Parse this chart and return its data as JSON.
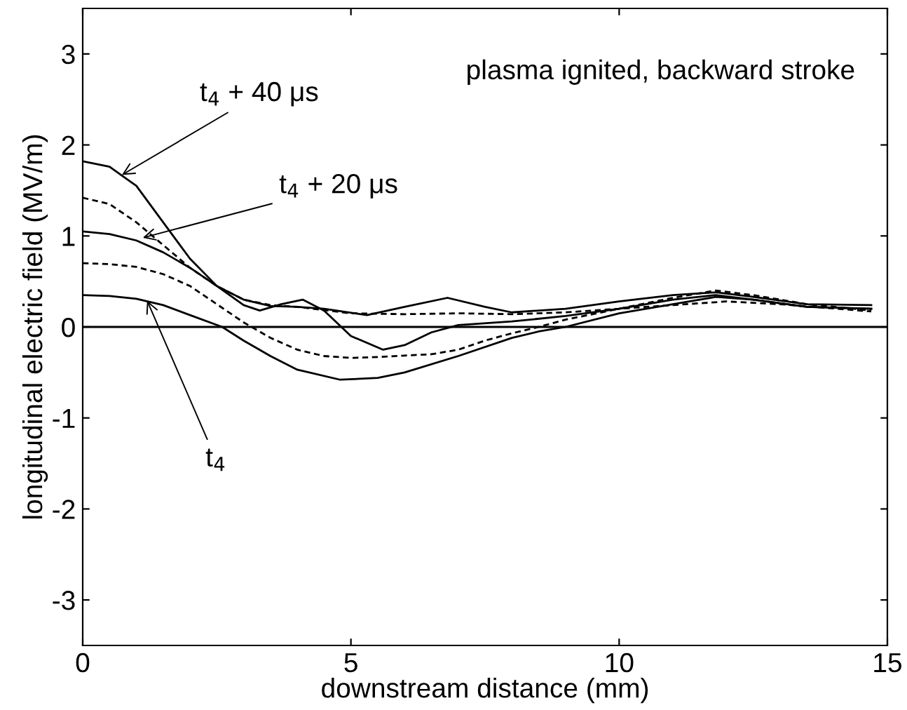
{
  "chart_data": {
    "type": "line",
    "xlabel": "downstream distance (mm)",
    "ylabel": "longitudinal electric field (MV/m)",
    "xlim": [
      0,
      15
    ],
    "ylim": [
      -3.5,
      3.5
    ],
    "xticks": [
      0,
      5,
      10,
      15
    ],
    "yticks": [
      -3,
      -2,
      -1,
      0,
      1,
      2,
      3
    ],
    "grid": false,
    "legend": false,
    "marker": "none",
    "series": [
      {
        "color": "#000000",
        "line_style": "solid",
        "x": [
          0,
          0.5,
          1,
          1.5,
          2,
          2.5,
          3,
          3.3,
          3.7,
          4.1,
          4.5,
          5,
          5.6,
          6,
          6.5,
          7,
          8,
          9,
          10,
          11,
          11.8,
          12.5,
          13.5,
          14.7
        ],
        "values": [
          1.82,
          1.76,
          1.55,
          1.15,
          0.75,
          0.45,
          0.24,
          0.18,
          0.25,
          0.3,
          0.18,
          -0.1,
          -0.25,
          -0.2,
          -0.06,
          0.02,
          0.06,
          0.12,
          0.2,
          0.3,
          0.35,
          0.3,
          0.22,
          0.2
        ]
      },
      {
        "color": "#000000",
        "line_style": "dashed",
        "x": [
          0,
          0.5,
          1,
          1.5,
          2,
          2.5,
          3,
          3.5,
          4,
          5,
          6,
          7,
          8,
          9,
          10,
          11,
          12,
          13,
          14.7
        ],
        "values": [
          1.42,
          1.35,
          1.15,
          0.9,
          0.65,
          0.45,
          0.3,
          0.24,
          0.22,
          0.15,
          0.14,
          0.15,
          0.14,
          0.16,
          0.2,
          0.24,
          0.28,
          0.25,
          0.17
        ]
      },
      {
        "color": "#000000",
        "line_style": "solid",
        "x": [
          0,
          0.5,
          1,
          1.5,
          2,
          2.5,
          3,
          3.5,
          4,
          4.5,
          5.3,
          6,
          6.8,
          7.5,
          8,
          9,
          10,
          11,
          11.8,
          12.5,
          13.5,
          14.7
        ],
        "values": [
          1.05,
          1.02,
          0.95,
          0.82,
          0.65,
          0.45,
          0.3,
          0.23,
          0.22,
          0.2,
          0.13,
          0.22,
          0.32,
          0.22,
          0.16,
          0.2,
          0.28,
          0.35,
          0.38,
          0.33,
          0.25,
          0.24
        ]
      },
      {
        "color": "#000000",
        "line_style": "dashed",
        "x": [
          0,
          0.5,
          1,
          1.5,
          2,
          2.5,
          3,
          3.5,
          4,
          4.5,
          5,
          5.5,
          6.5,
          7,
          7.5,
          8,
          8.5,
          9,
          10,
          11,
          11.8,
          12.5,
          13.5,
          14.7
        ],
        "values": [
          0.7,
          0.69,
          0.66,
          0.58,
          0.45,
          0.25,
          0.05,
          -0.12,
          -0.25,
          -0.32,
          -0.34,
          -0.33,
          -0.3,
          -0.25,
          -0.15,
          -0.07,
          0.0,
          0.08,
          0.2,
          0.32,
          0.4,
          0.35,
          0.25,
          0.18
        ]
      },
      {
        "color": "#000000",
        "line_style": "solid",
        "x": [
          0,
          0.5,
          1,
          1.5,
          2,
          2.6,
          3,
          3.5,
          4,
          4.8,
          5.5,
          6,
          7,
          8,
          8.5,
          9,
          10,
          11,
          11.8,
          12.5,
          13.5,
          14.7
        ],
        "values": [
          0.35,
          0.34,
          0.31,
          0.24,
          0.13,
          0.0,
          -0.15,
          -0.32,
          -0.47,
          -0.58,
          -0.56,
          -0.5,
          -0.32,
          -0.12,
          -0.05,
          0.0,
          0.15,
          0.25,
          0.33,
          0.3,
          0.22,
          0.2
        ]
      }
    ],
    "ref_lines": [
      {
        "axis": "y",
        "value": 0,
        "color": "#000000",
        "line_style": "solid"
      }
    ],
    "annotations": [
      "plasma ignited, backward stroke",
      {
        "text": "t$_{4}$ + 40 μs",
        "x": 0.73,
        "y": 1.67
      },
      {
        "text": "t$_{4}$ + 20 μs",
        "x": 1.12,
        "y": 0.98
      },
      {
        "text": "t$_{4}$",
        "x": 1.2,
        "y": 0.29
      }
    ]
  }
}
